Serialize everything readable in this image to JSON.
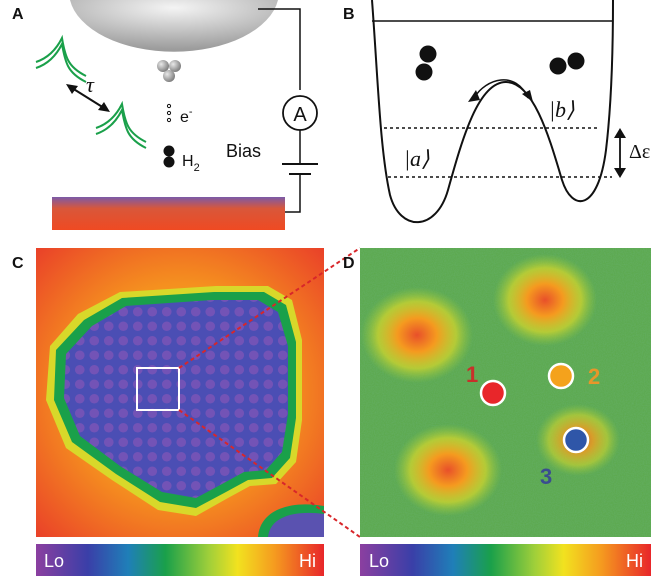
{
  "panels": {
    "a": {
      "letter": "A",
      "ammeter": "A",
      "electron": "e",
      "electron_sup": "-",
      "h2": "H",
      "h2_sub": "2",
      "bias": "Bias",
      "tau": "τ"
    },
    "b": {
      "letter": "B",
      "state_a": "|a⟩",
      "state_b": "|b⟩",
      "delta": "Δε"
    },
    "c": {
      "letter": "C",
      "scale_lo": "Lo",
      "scale_hi": "Hi"
    },
    "d": {
      "letter": "D",
      "scale_lo": "Lo",
      "scale_hi": "Hi",
      "markers": [
        {
          "label": "1",
          "color": "#e8262a",
          "label_color": "#c8302a"
        },
        {
          "label": "2",
          "color": "#f4a21c",
          "label_color": "#e8962a"
        },
        {
          "label": "3",
          "color": "#2f56a8",
          "label_color": "#3a4d8f"
        }
      ]
    }
  },
  "colors": {
    "map_lo": "#7b3fa0",
    "map_hi": "#e8262a",
    "spectrum_green": "#1aa04a"
  }
}
